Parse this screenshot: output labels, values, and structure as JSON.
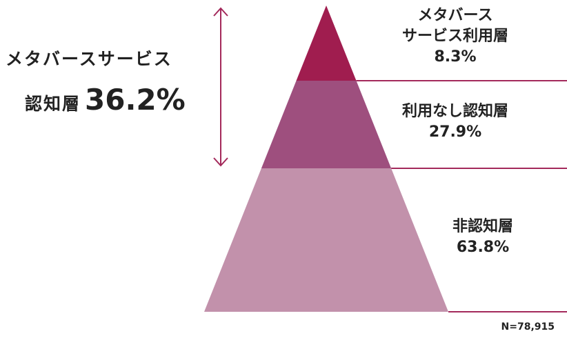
{
  "chart_data": {
    "type": "pyramid",
    "segments": [
      {
        "name_lines": [
          "メタバース",
          "サービス利用層"
        ],
        "value": 8.3,
        "value_label": "8.3%",
        "color": "#a01d4f"
      },
      {
        "name_lines": [
          "利用なし認知層"
        ],
        "value": 27.9,
        "value_label": "27.9%",
        "color": "#9e4f7e"
      },
      {
        "name_lines": [
          "非認知層"
        ],
        "value": 63.8,
        "value_label": "63.8%",
        "color": "#c291ab"
      }
    ],
    "bracket": {
      "label_line1": "メタバースサービス",
      "label_line2": "認知層",
      "value_label": "36.2%",
      "color": "#a3285a"
    },
    "leader_line_color": "#a3285a",
    "note": "N=78,915"
  }
}
